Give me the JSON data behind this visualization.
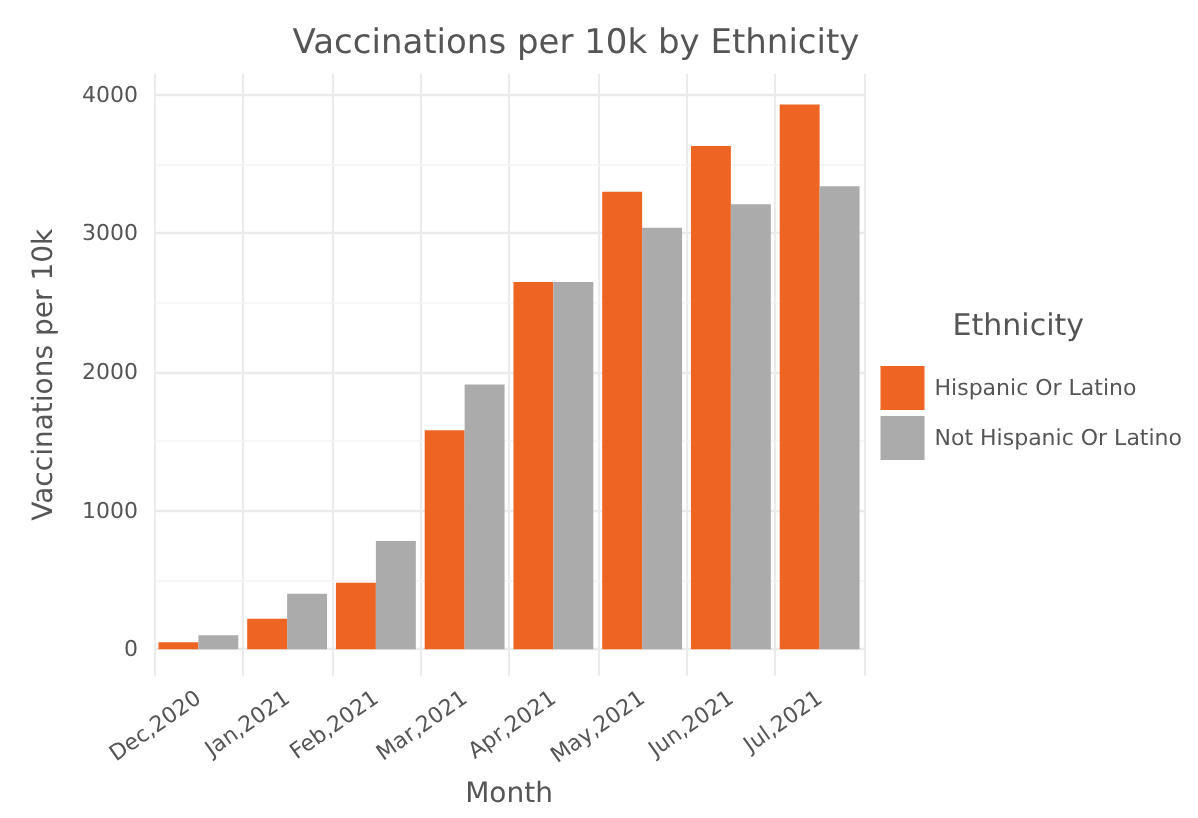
{
  "chart_data": {
    "type": "bar",
    "title": "Vaccinations per 10k by Ethnicity",
    "xlabel": "Month",
    "ylabel": "Vaccinations per 10k",
    "legend_title": "Ethnicity",
    "categories": [
      "Dec,2020",
      "Jan,2021",
      "Feb,2021",
      "Mar,2021",
      "Apr,2021",
      "May,2021",
      "Jun,2021",
      "Jul,2021"
    ],
    "series": [
      {
        "name": "Hispanic Or Latino",
        "color": "#ee6422",
        "values": [
          50,
          220,
          480,
          1580,
          2650,
          3300,
          3630,
          3930
        ]
      },
      {
        "name": "Not Hispanic Or Latino",
        "color": "#aaabaa",
        "values": [
          100,
          400,
          780,
          1910,
          2650,
          3040,
          3210,
          3340
        ]
      }
    ],
    "ylim": [
      -190,
      4150
    ],
    "yticks": [
      0,
      1000,
      2000,
      3000,
      4000
    ],
    "grid": true,
    "legend": "right"
  }
}
